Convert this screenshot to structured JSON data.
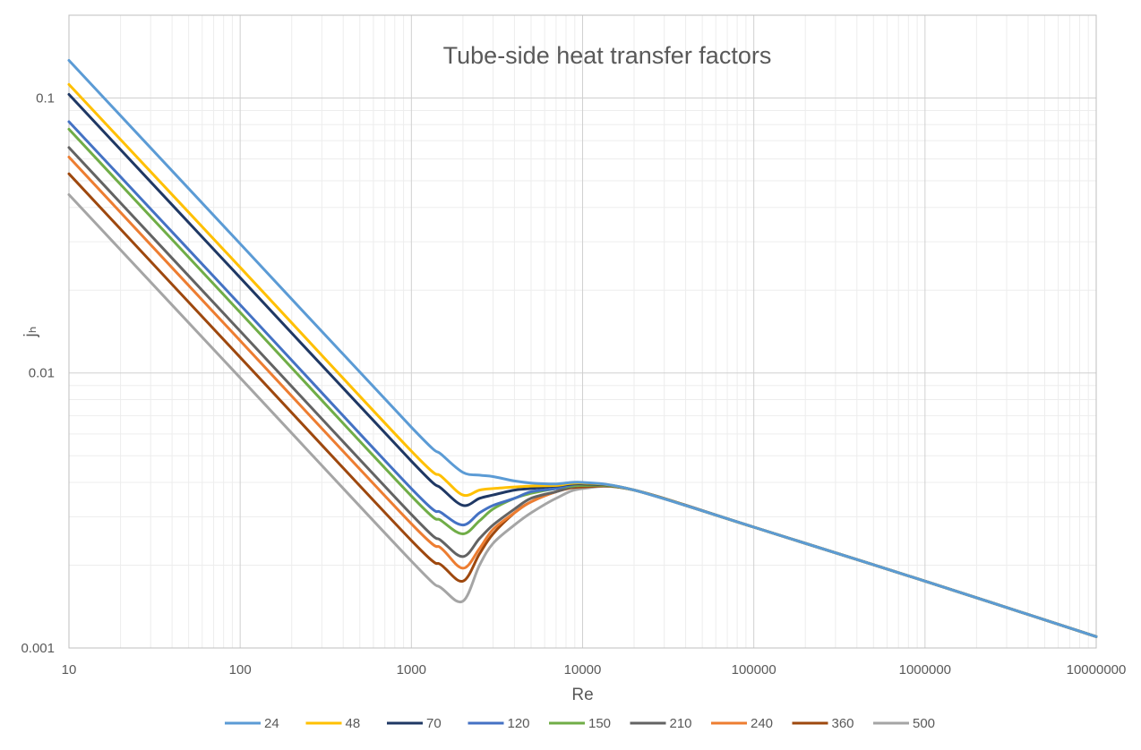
{
  "chart_data": {
    "type": "line",
    "title": "Tube-side heat transfer factors",
    "xlabel": "Re",
    "ylabel": "jₕ",
    "x_scale": "log",
    "y_scale": "log",
    "xlim": [
      10,
      10000000
    ],
    "ylim": [
      0.001,
      0.2
    ],
    "grid": "major and minor",
    "legend_position": "bottom",
    "x_tick_labels": [
      "10",
      "100",
      "1000",
      "10000",
      "100000",
      "1000000",
      "10000000"
    ],
    "y_tick_labels": [
      "0.001",
      "0.01",
      "0.1"
    ],
    "x": [
      10,
      100,
      1000,
      1500,
      2000,
      2500,
      3000,
      4000,
      5000,
      7000,
      10000,
      20000,
      100000,
      1000000,
      10000000
    ],
    "series": [
      {
        "name": "24",
        "color": "#5B9BD5",
        "values": [
          0.137,
          0.0295,
          0.00635,
          0.00505,
          0.00435,
          0.00425,
          0.0042,
          0.00405,
          0.00398,
          0.00395,
          0.004,
          0.00375,
          0.00275,
          0.00175,
          0.0011
        ]
      },
      {
        "name": "48",
        "color": "#FFC000",
        "values": [
          0.112,
          0.0242,
          0.0052,
          0.0042,
          0.0036,
          0.00375,
          0.0038,
          0.00385,
          0.00388,
          0.0039,
          0.00398,
          0.00375,
          0.00275,
          0.00175,
          0.0011
        ]
      },
      {
        "name": "70",
        "color": "#1F3864",
        "values": [
          0.103,
          0.0222,
          0.00478,
          0.0038,
          0.0033,
          0.0035,
          0.0036,
          0.00375,
          0.0038,
          0.00388,
          0.00395,
          0.00375,
          0.00275,
          0.00175,
          0.0011
        ]
      },
      {
        "name": "120",
        "color": "#4472C4",
        "values": [
          0.082,
          0.0177,
          0.0038,
          0.0031,
          0.0028,
          0.0031,
          0.0033,
          0.0035,
          0.0037,
          0.0038,
          0.00395,
          0.00375,
          0.00275,
          0.00175,
          0.0011
        ]
      },
      {
        "name": "150",
        "color": "#70AD47",
        "values": [
          0.077,
          0.0166,
          0.00357,
          0.0029,
          0.0026,
          0.0029,
          0.0032,
          0.0035,
          0.00365,
          0.0038,
          0.0039,
          0.00375,
          0.00275,
          0.00175,
          0.0011
        ]
      },
      {
        "name": "210",
        "color": "#636363",
        "values": [
          0.066,
          0.0142,
          0.00306,
          0.00245,
          0.00215,
          0.0025,
          0.0028,
          0.0032,
          0.0035,
          0.0037,
          0.0039,
          0.00375,
          0.00275,
          0.00175,
          0.0011
        ]
      },
      {
        "name": "240",
        "color": "#ED7D31",
        "values": [
          0.061,
          0.0131,
          0.00283,
          0.0023,
          0.00195,
          0.0023,
          0.0027,
          0.0031,
          0.0034,
          0.0037,
          0.0039,
          0.00375,
          0.00275,
          0.00175,
          0.0011
        ]
      },
      {
        "name": "360",
        "color": "#9E480E",
        "values": [
          0.053,
          0.0114,
          0.00246,
          0.002,
          0.00175,
          0.0022,
          0.0026,
          0.0031,
          0.0034,
          0.0037,
          0.00385,
          0.00375,
          0.00275,
          0.00175,
          0.0011
        ]
      },
      {
        "name": "500",
        "color": "#A5A5A5",
        "values": [
          0.0445,
          0.0096,
          0.00207,
          0.00165,
          0.00148,
          0.002,
          0.0024,
          0.0028,
          0.0031,
          0.0035,
          0.0038,
          0.00375,
          0.00275,
          0.00175,
          0.0011
        ]
      }
    ]
  }
}
